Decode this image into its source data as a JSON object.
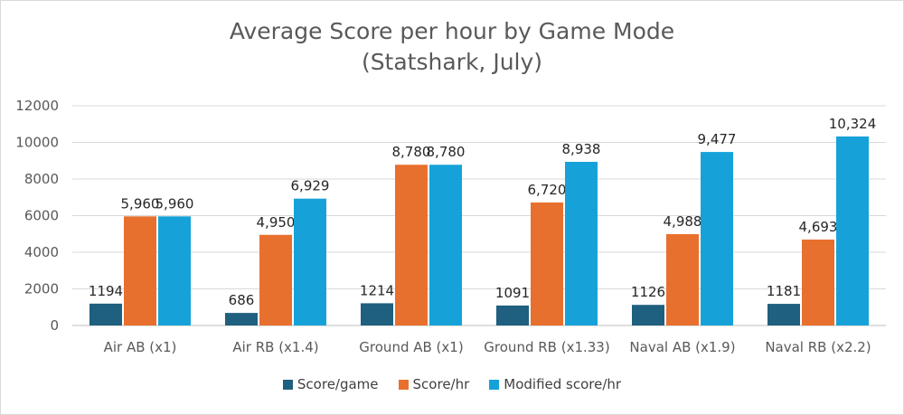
{
  "chart_data": {
    "type": "bar",
    "title": "Average Score per hour by Game Mode",
    "subtitle": "(Statshark, July)",
    "categories": [
      "Air AB (x1)",
      "Air RB (x1.4)",
      "Ground AB (x1)",
      "Ground RB (x1.33)",
      "Naval AB (x1.9)",
      "Naval RB (x2.2)"
    ],
    "series": [
      {
        "name": "Score/game",
        "color": "#1f5f7f",
        "values": [
          1194,
          686,
          1214,
          1091,
          1126,
          1181
        ],
        "labels": [
          "1194",
          "686",
          "1214",
          "1091",
          "1126",
          "1181"
        ]
      },
      {
        "name": "Score/hr",
        "color": "#e8702e",
        "values": [
          5960,
          4950,
          8780,
          6720,
          4988,
          4693
        ],
        "labels": [
          "5,960",
          "4,950",
          "8,780",
          "6,720",
          "4,988",
          "4,693"
        ]
      },
      {
        "name": "Modified score/hr",
        "color": "#16a2d8",
        "values": [
          5960,
          6929,
          8780,
          8938,
          9477,
          10324
        ],
        "labels": [
          "5,960",
          "6,929",
          "8,780",
          "8,938",
          "9,477",
          "10,324"
        ]
      }
    ],
    "ylim": [
      0,
      12000
    ],
    "yticks": [
      "0",
      "2000",
      "4000",
      "6000",
      "8000",
      "10000",
      "12000"
    ],
    "grid": true,
    "legend_position": "bottom"
  }
}
